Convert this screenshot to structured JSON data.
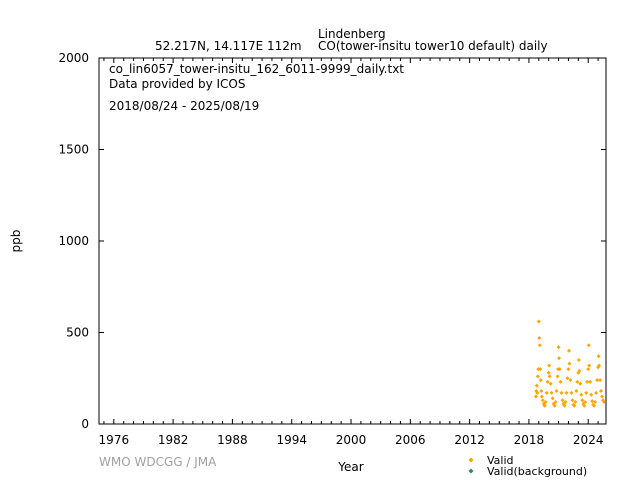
{
  "header": {
    "station": "Lindenberg",
    "location": "52.217N, 14.117E 112m",
    "series_title": "CO(tower-insitu tower10 default) daily"
  },
  "info": {
    "filename": "co_lin6057_tower-insitu_162_6011-9999_daily.txt",
    "provider": "Data provided by ICOS",
    "period": "2018/08/24 - 2025/08/19"
  },
  "credit": "WMO WDCGG / JMA",
  "legend": {
    "valid": "Valid",
    "valid_background": "Valid(background)"
  },
  "colors": {
    "valid": "#ffa500",
    "valid_background": "#2e8b57",
    "axis": "#000000",
    "credit": "#a0a0a0"
  },
  "chart_data": {
    "type": "scatter",
    "xlabel": "Year",
    "ylabel": "ppb",
    "xlim": [
      1974.5,
      2025.8
    ],
    "ylim": [
      0,
      2000
    ],
    "x_ticks": [
      1976,
      1982,
      1988,
      1994,
      2000,
      2006,
      2012,
      2018,
      2024
    ],
    "y_ticks": [
      0,
      500,
      1000,
      1500,
      2000
    ],
    "grid": false,
    "legend_position": "bottom-right",
    "series": [
      {
        "name": "Valid",
        "marker": "diamond",
        "points": [
          [
            2018.7,
            150
          ],
          [
            2018.75,
            180
          ],
          [
            2018.8,
            210
          ],
          [
            2018.85,
            170
          ],
          [
            2018.9,
            260
          ],
          [
            2018.95,
            300
          ],
          [
            2019.0,
            560
          ],
          [
            2019.05,
            470
          ],
          [
            2019.1,
            430
          ],
          [
            2019.15,
            300
          ],
          [
            2019.2,
            240
          ],
          [
            2019.25,
            180
          ],
          [
            2019.3,
            150
          ],
          [
            2019.4,
            130
          ],
          [
            2019.5,
            110
          ],
          [
            2019.6,
            100
          ],
          [
            2019.7,
            120
          ],
          [
            2019.8,
            170
          ],
          [
            2019.9,
            230
          ],
          [
            2020.0,
            280
          ],
          [
            2020.05,
            320
          ],
          [
            2020.1,
            260
          ],
          [
            2020.2,
            220
          ],
          [
            2020.3,
            170
          ],
          [
            2020.4,
            140
          ],
          [
            2020.5,
            110
          ],
          [
            2020.6,
            100
          ],
          [
            2020.7,
            120
          ],
          [
            2020.8,
            180
          ],
          [
            2020.9,
            260
          ],
          [
            2020.95,
            300
          ],
          [
            2021.0,
            420
          ],
          [
            2021.05,
            360
          ],
          [
            2021.1,
            300
          ],
          [
            2021.2,
            230
          ],
          [
            2021.3,
            170
          ],
          [
            2021.4,
            130
          ],
          [
            2021.5,
            110
          ],
          [
            2021.6,
            100
          ],
          [
            2021.7,
            120
          ],
          [
            2021.8,
            170
          ],
          [
            2021.9,
            250
          ],
          [
            2022.0,
            300
          ],
          [
            2022.05,
            400
          ],
          [
            2022.1,
            330
          ],
          [
            2022.2,
            240
          ],
          [
            2022.3,
            170
          ],
          [
            2022.4,
            130
          ],
          [
            2022.5,
            105
          ],
          [
            2022.6,
            100
          ],
          [
            2022.7,
            120
          ],
          [
            2022.8,
            180
          ],
          [
            2022.9,
            230
          ],
          [
            2023.0,
            280
          ],
          [
            2023.05,
            350
          ],
          [
            2023.1,
            290
          ],
          [
            2023.2,
            220
          ],
          [
            2023.3,
            160
          ],
          [
            2023.4,
            130
          ],
          [
            2023.5,
            110
          ],
          [
            2023.6,
            100
          ],
          [
            2023.7,
            120
          ],
          [
            2023.8,
            170
          ],
          [
            2023.9,
            230
          ],
          [
            2024.0,
            300
          ],
          [
            2024.05,
            430
          ],
          [
            2024.1,
            320
          ],
          [
            2024.2,
            230
          ],
          [
            2024.3,
            160
          ],
          [
            2024.4,
            125
          ],
          [
            2024.5,
            105
          ],
          [
            2024.6,
            100
          ],
          [
            2024.7,
            120
          ],
          [
            2024.8,
            170
          ],
          [
            2024.9,
            240
          ],
          [
            2025.0,
            310
          ],
          [
            2025.05,
            370
          ],
          [
            2025.1,
            320
          ],
          [
            2025.2,
            240
          ],
          [
            2025.3,
            180
          ],
          [
            2025.4,
            150
          ],
          [
            2025.5,
            130
          ],
          [
            2025.6,
            120
          ]
        ]
      },
      {
        "name": "Valid(background)",
        "marker": "diamond",
        "points": []
      }
    ]
  }
}
